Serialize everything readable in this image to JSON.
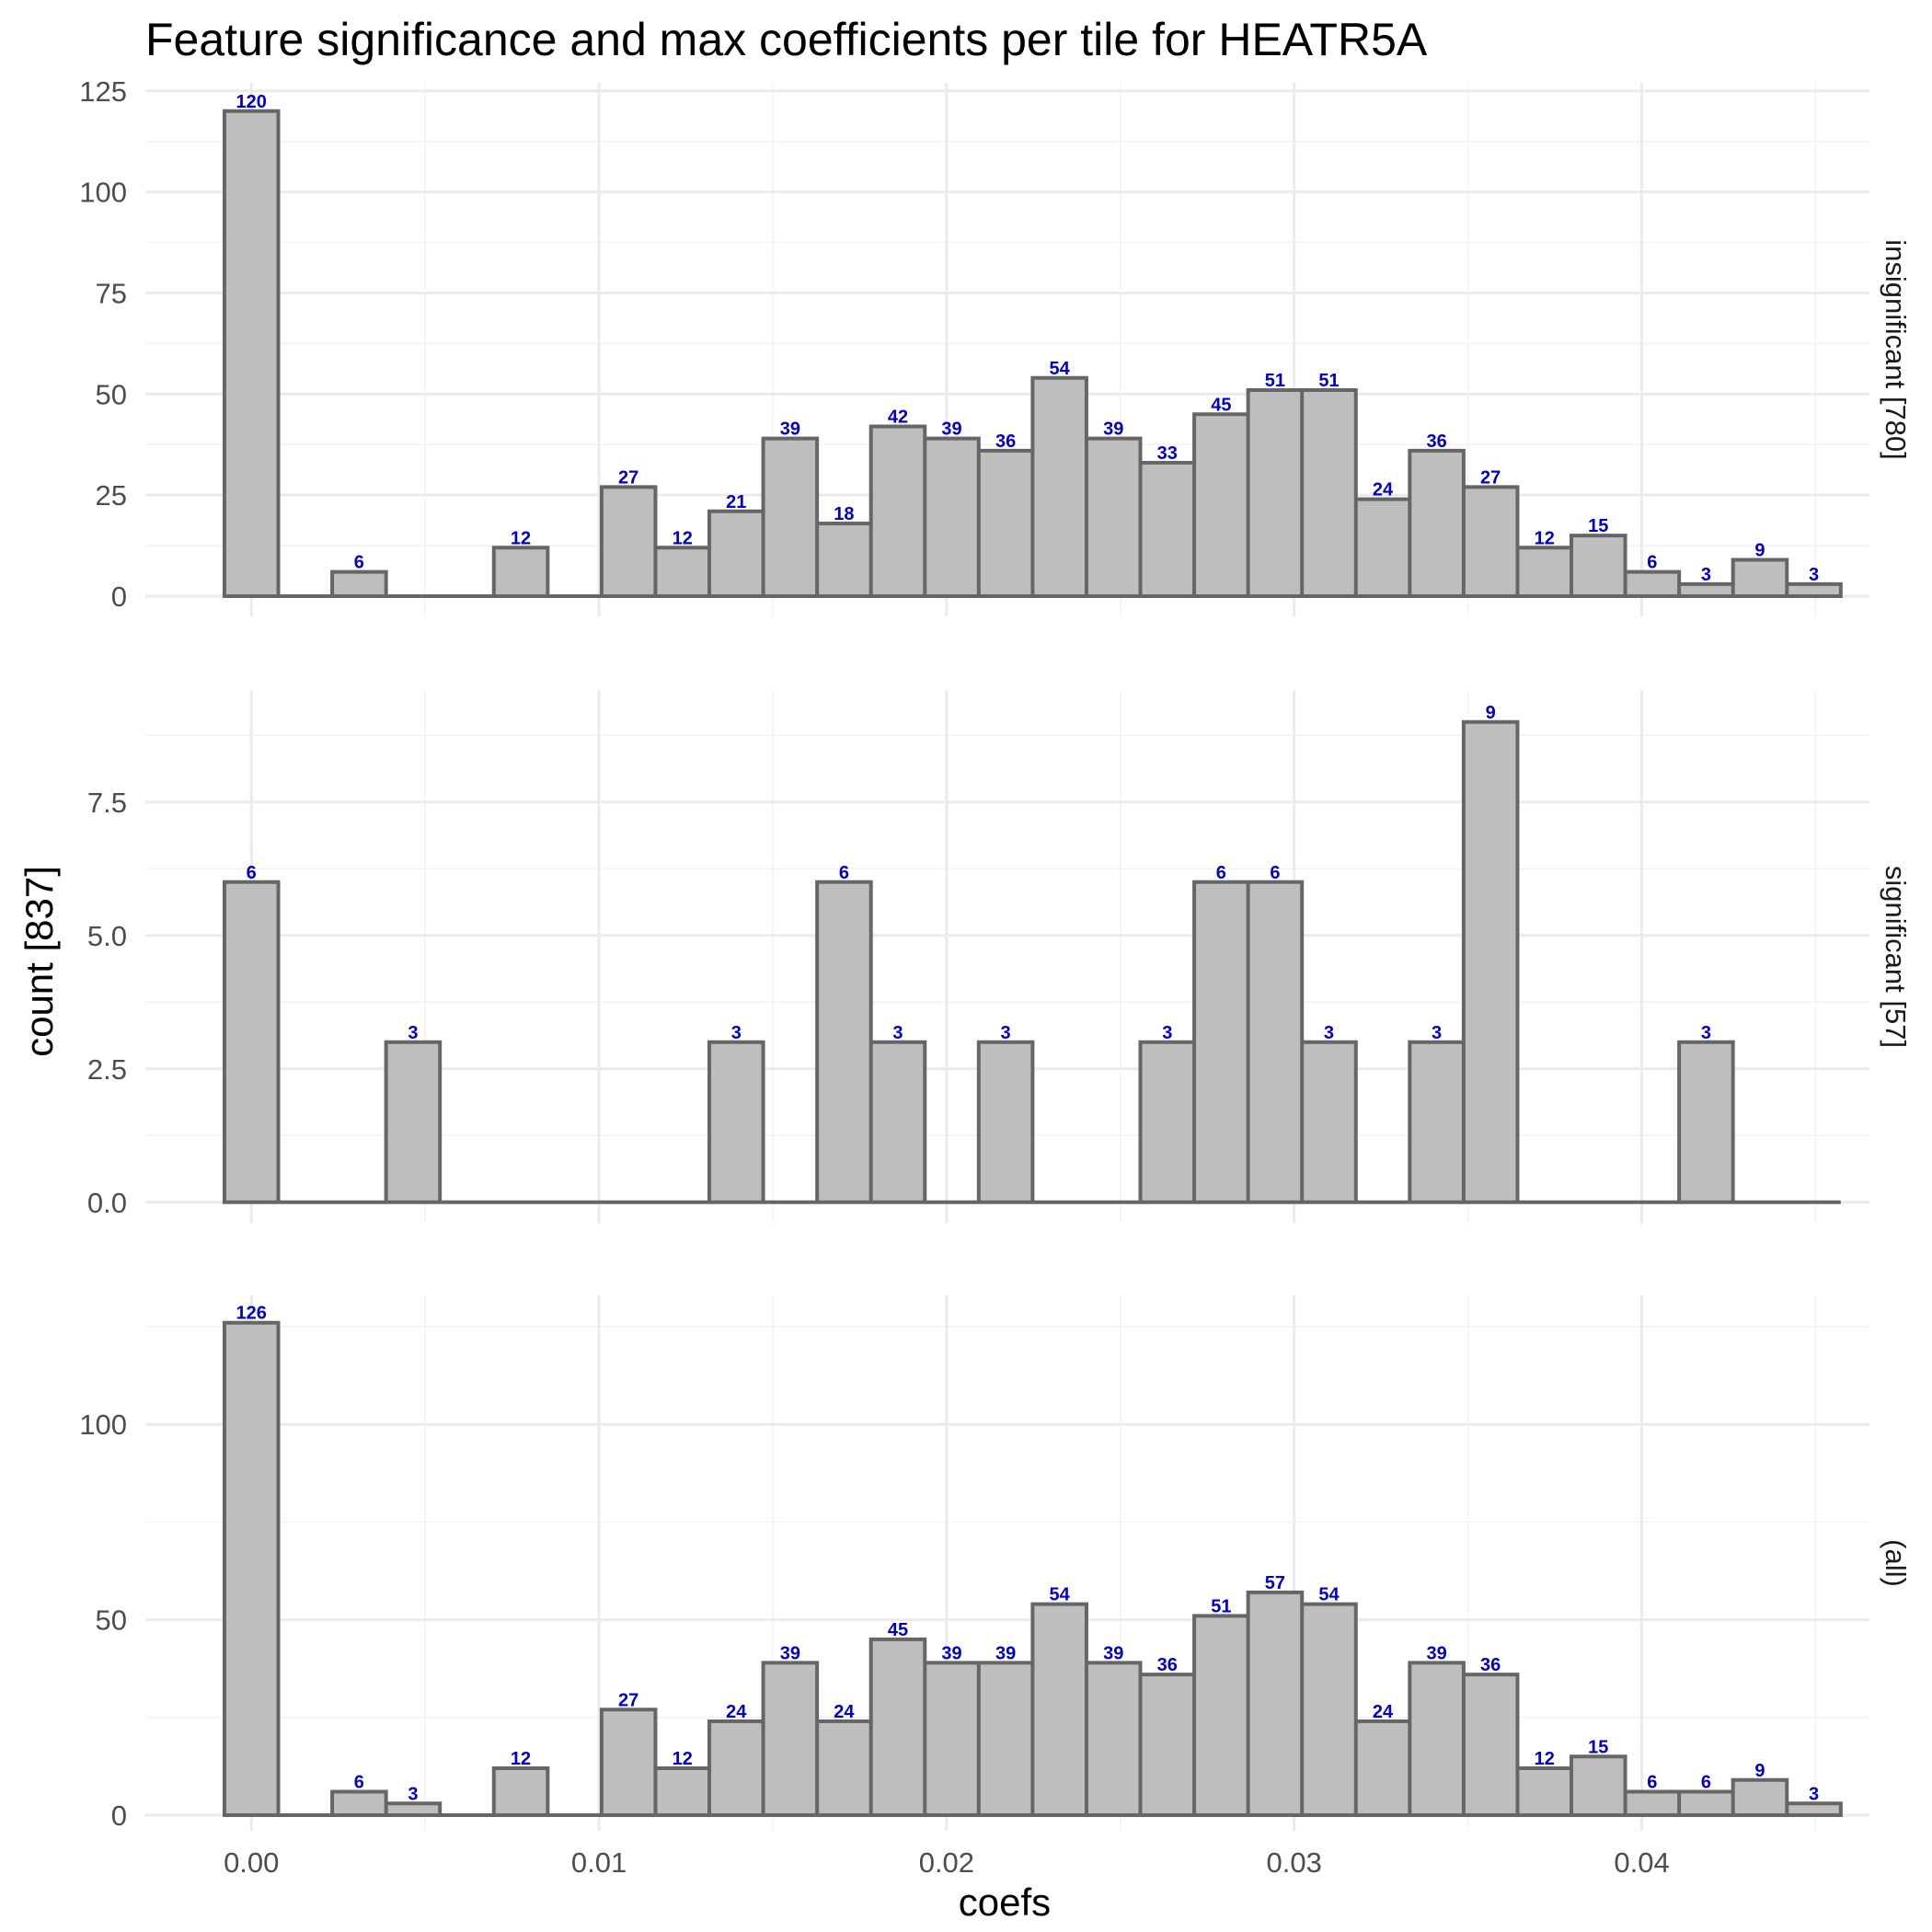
{
  "chart_data": {
    "type": "bar",
    "title": "Feature significance and max coefficients per tile for HEATR5A",
    "xlabel": "coefs",
    "ylabel": "count [837]",
    "xlim": [
      -0.00305,
      0.04655
    ],
    "x_ticks": [
      0.0,
      0.01,
      0.02,
      0.03,
      0.04
    ],
    "x_tick_labels": [
      "0.00",
      "0.01",
      "0.02",
      "0.03",
      "0.04"
    ],
    "bin_width": 0.00155,
    "bin_centers": [
      0.0,
      0.00155,
      0.0031,
      0.00465,
      0.0062,
      0.00775,
      0.0093,
      0.01085,
      0.0124,
      0.01395,
      0.0155,
      0.01705,
      0.0186,
      0.02015,
      0.0217,
      0.02325,
      0.0248,
      0.02635,
      0.0279,
      0.02945,
      0.031,
      0.03255,
      0.0341,
      0.03565,
      0.0372,
      0.03875,
      0.0403,
      0.04185,
      0.0434,
      0.04495
    ],
    "grid": true,
    "bar_fill": "#bebebe",
    "bar_outline": "#666666",
    "label_color": "#0000cc",
    "panels": [
      {
        "strip": "insignificant [780]",
        "ylim": [
          -5,
          127
        ],
        "y_ticks": [
          0,
          25,
          50,
          75,
          100,
          125
        ],
        "y_tick_labels": [
          "0",
          "25",
          "50",
          "75",
          "100",
          "125"
        ],
        "values": [
          120,
          0,
          6,
          0,
          0,
          12,
          0,
          27,
          12,
          21,
          39,
          18,
          42,
          39,
          36,
          54,
          39,
          33,
          45,
          51,
          51,
          24,
          36,
          27,
          12,
          15,
          6,
          3,
          9,
          3
        ]
      },
      {
        "strip": "significant [57]",
        "ylim": [
          -0.4,
          9.6
        ],
        "y_ticks": [
          0,
          2.5,
          5,
          7.5
        ],
        "y_tick_labels": [
          "0.0",
          "2.5",
          "5.0",
          "7.5"
        ],
        "values": [
          6,
          0,
          0,
          3,
          0,
          0,
          0,
          0,
          0,
          3,
          0,
          6,
          3,
          0,
          3,
          0,
          0,
          3,
          6,
          6,
          3,
          0,
          3,
          9,
          0,
          0,
          0,
          3,
          0,
          0
        ]
      },
      {
        "strip": "(all)",
        "ylim": [
          -4,
          133
        ],
        "y_ticks": [
          0,
          50,
          100
        ],
        "y_tick_labels": [
          "0",
          "50",
          "100"
        ],
        "values": [
          126,
          0,
          6,
          3,
          0,
          12,
          0,
          27,
          12,
          24,
          39,
          24,
          45,
          39,
          39,
          54,
          39,
          36,
          51,
          57,
          54,
          24,
          39,
          36,
          12,
          15,
          6,
          6,
          9,
          3
        ]
      }
    ]
  }
}
